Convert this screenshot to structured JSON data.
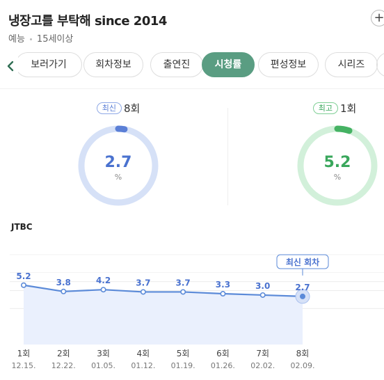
{
  "header": {
    "title": "냉장고를 부탁해 since 2014",
    "genre": "예능",
    "rating": "15세이상"
  },
  "tabs": [
    {
      "label": "보러가기",
      "active": false
    },
    {
      "label": "회차정보",
      "active": false
    },
    {
      "label": "출연진",
      "active": false
    },
    {
      "label": "시청률",
      "active": true
    },
    {
      "label": "편성정보",
      "active": false
    },
    {
      "label": "시리즈",
      "active": false
    }
  ],
  "summary": {
    "latest": {
      "badge": "최신",
      "episode": "8회",
      "value": "2.7",
      "unit": "%",
      "fraction": 0.027,
      "color": "#5b7fd6",
      "track": "#d6e1f7"
    },
    "best": {
      "badge": "최고",
      "episode": "1회",
      "value": "5.2",
      "unit": "%",
      "fraction": 0.052,
      "color": "#45b263",
      "track": "#d2f0da"
    }
  },
  "channel": "JTBC",
  "chart_data": {
    "type": "area",
    "categories": [
      "1회",
      "2회",
      "3회",
      "4회",
      "5회",
      "6회",
      "7회",
      "8회"
    ],
    "dates": [
      "12.15.",
      "12.22.",
      "01.05.",
      "01.12.",
      "01.19.",
      "01.26.",
      "02.02.",
      "02.09."
    ],
    "values": [
      5.2,
      3.8,
      4.2,
      3.7,
      3.7,
      3.3,
      3.0,
      2.7
    ],
    "labels": [
      "5.2",
      "3.8",
      "4.2",
      "3.7",
      "3.7",
      "3.3",
      "3.0",
      "2.7"
    ],
    "ylim": [
      -8,
      16
    ],
    "grid": true,
    "annotation": "최신 회차",
    "line_color": "#5b8ad8",
    "fill_color": "#eaf0fd"
  }
}
